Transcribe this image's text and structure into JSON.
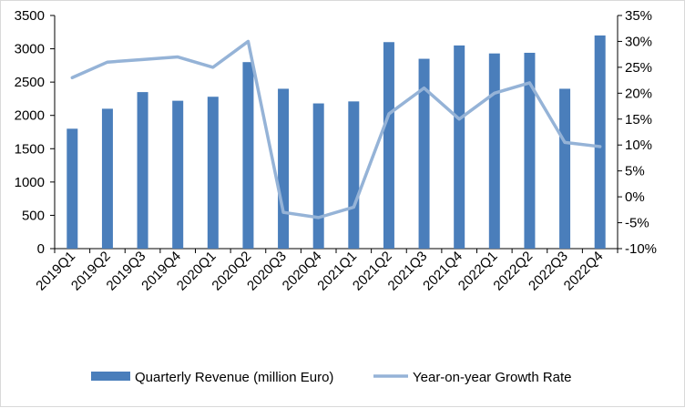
{
  "chart_data": {
    "type": "bar",
    "title": "",
    "xlabel": "",
    "ylabel": "",
    "categories": [
      "2019Q1",
      "2019Q2",
      "2019Q3",
      "2019Q4",
      "2020Q1",
      "2020Q2",
      "2020Q3",
      "2020Q4",
      "2021Q1",
      "2021Q2",
      "2021Q3",
      "2021Q4",
      "2022Q1",
      "2022Q2",
      "2022Q3",
      "2022Q4"
    ],
    "series": [
      {
        "name": "Quarterly Revenue (million Euro)",
        "type": "bar",
        "axis": "left",
        "color": "#4a7ebb",
        "values": [
          1800,
          2100,
          2350,
          2220,
          2280,
          2800,
          2400,
          2180,
          2210,
          3100,
          2850,
          3050,
          2930,
          2940,
          2400,
          3200
        ]
      },
      {
        "name": "Year-on-year Growth Rate",
        "type": "line",
        "axis": "right",
        "unit": "%",
        "color": "#95b3d7",
        "values": [
          23,
          26,
          26.5,
          27,
          25,
          30,
          -3,
          -4,
          -2,
          16,
          21,
          15,
          20,
          22,
          10.5,
          9.7
        ]
      }
    ],
    "y_left": {
      "ylim": [
        0,
        3500
      ],
      "ticks": [
        "0",
        "500",
        "1000",
        "1500",
        "2000",
        "2500",
        "3000",
        "3500"
      ]
    },
    "y_right": {
      "ylim": [
        -10,
        35
      ],
      "ticks": [
        "-10%",
        "-5%",
        "0%",
        "5%",
        "10%",
        "15%",
        "20%",
        "25%",
        "30%",
        "35%"
      ]
    },
    "grid": false,
    "legend": "bottom"
  }
}
